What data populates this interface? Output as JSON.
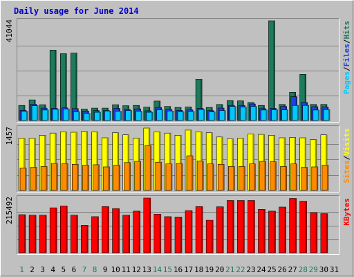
{
  "chart_data": {
    "type": "bar",
    "title": "Daily usage for June 2014",
    "days": [
      "1",
      "2",
      "3",
      "4",
      "5",
      "6",
      "7",
      "8",
      "9",
      "10",
      "11",
      "12",
      "13",
      "14",
      "15",
      "16",
      "17",
      "18",
      "19",
      "20",
      "21",
      "22",
      "23",
      "24",
      "25",
      "26",
      "27",
      "28",
      "29",
      "30",
      "31"
    ],
    "weekend_days": [
      1,
      7,
      8,
      14,
      15,
      21,
      22,
      28,
      29
    ],
    "colors": {
      "hits": "#1e7a5c",
      "files": "#2040e0",
      "pages": "#00c8ff",
      "visits": "#ffff00",
      "sites": "#ff8c00",
      "kbytes": "#ff0000",
      "background": "#c0c0c0",
      "title": "#0000cc",
      "weekend": "#1e7a5c"
    },
    "panels": [
      {
        "id": "hits",
        "max_label": "41044",
        "ymax": 41044,
        "legend": [
          {
            "text": "Pages",
            "color": "#00c8ff"
          },
          {
            "text": "Files",
            "color": "#2040e0"
          },
          {
            "text": "Hits",
            "color": "#1e7a5c"
          }
        ],
        "series": [
          {
            "key": "hits",
            "values": [
              6200,
              8500,
              6500,
              29000,
              27500,
              27800,
              4700,
              5100,
              5100,
              6500,
              6100,
              6200,
              5500,
              8000,
              5800,
              5400,
              5600,
              17000,
              5400,
              6600,
              8200,
              8100,
              7400,
              6200,
              41044,
              6600,
              11600,
              19000,
              6600,
              6600,
              null
            ]
          },
          {
            "key": "files",
            "values": [
              4200,
              6700,
              5100,
              5000,
              5200,
              4900,
              3900,
              4100,
              4100,
              5000,
              4500,
              4800,
              4000,
              5400,
              4500,
              4200,
              4400,
              5000,
              4100,
              5100,
              6200,
              6200,
              6800,
              4900,
              5000,
              5800,
              9800,
              7400,
              5700,
              5500,
              null
            ]
          },
          {
            "key": "pages",
            "values": [
              3800,
              6100,
              4300,
              4600,
              4700,
              3600,
              2900,
              3400,
              3900,
              3800,
              4100,
              3800,
              3400,
              4400,
              3900,
              3600,
              3700,
              4500,
              3500,
              4100,
              5800,
              5500,
              5800,
              4300,
              4400,
              4400,
              6200,
              6200,
              4300,
              4500,
              null
            ]
          }
        ]
      },
      {
        "id": "visits",
        "max_label": "1457",
        "ymax": 1457,
        "legend": [
          {
            "text": "Sites",
            "color": "#ff8c00"
          },
          {
            "text": "Visits",
            "color": "#ffff00"
          }
        ],
        "series": [
          {
            "key": "visits",
            "values": [
              1220,
              1220,
              1290,
              1340,
              1370,
              1360,
              1380,
              1370,
              1230,
              1350,
              1300,
              1220,
              1457,
              1370,
              1340,
              1290,
              1410,
              1370,
              1350,
              1250,
              1210,
              1220,
              1320,
              1310,
              1290,
              1230,
              1240,
              1230,
              1190,
              1300,
              null
            ]
          },
          {
            "key": "sites",
            "values": [
              520,
              540,
              560,
              630,
              630,
              610,
              590,
              600,
              550,
              590,
              650,
              680,
              1050,
              660,
              620,
              630,
              810,
              690,
              620,
              610,
              560,
              560,
              620,
              680,
              670,
              560,
              620,
              540,
              550,
              590,
              null
            ]
          }
        ]
      },
      {
        "id": "kbytes",
        "max_label": "215492",
        "ymax": 215492,
        "legend": [
          {
            "text": "KBytes",
            "color": "#ff0000"
          }
        ],
        "series": [
          {
            "key": "kbytes",
            "values": [
              150000,
              148000,
              148000,
              177000,
              184000,
              148000,
              108000,
              142000,
              182000,
              174000,
              148000,
              164000,
              215492,
              152000,
              142000,
              141000,
              166000,
              182000,
              128000,
              181000,
              206000,
              206000,
              206000,
              171000,
              164000,
              180000,
              214000,
              203000,
              158000,
              154000,
              null
            ]
          }
        ]
      }
    ]
  }
}
